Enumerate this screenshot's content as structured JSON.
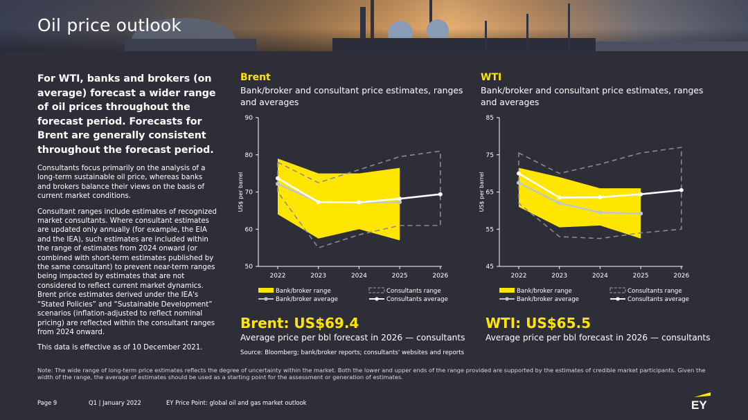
{
  "title": "Oil price outlook",
  "left": {
    "lead": "For WTI, banks and brokers (on average) forecast a wider range of oil prices throughout the forecast period. Forecasts for Brent are generally consistent throughout the forecast period.",
    "p1": "Consultants focus primarily on the analysis of a long-term sustainable oil price, whereas banks and brokers balance their views on the basis of current market conditions.",
    "p2": "Consultant ranges include estimates of recognized market consultants. Where consultant estimates are updated only annually (for example, the EIA and the IEA), such estimates are included within the range of estimates from 2024 onward (or combined with short-term estimates published by the same consultant) to prevent near-term ranges being impacted by estimates that are not considered to reflect current market dynamics. Brent price estimates derived under the IEA's “Stated Policies” and “Sustainable Development” scenarios (inflation-adjusted to reflect nominal pricing) are reflected within the consultant ranges from 2024 onward.",
    "p3": "This data is effective as of 10 December 2021."
  },
  "brent": {
    "title": "Brent",
    "subtitle": "Bank/broker and consultant price estimates, ranges and averages",
    "big": "Brent: US$69.4",
    "bigsub": "Average price per bbl forecast in 2026 — consultants"
  },
  "wti": {
    "title": "WTI",
    "subtitle": "Bank/broker and consultant price estimates, ranges and averages",
    "big": "WTI: US$65.5",
    "bigsub": "Average price per bbl forecast in 2026 — consultants"
  },
  "source": "Source: Bloomberg; bank/broker reports; consultants' websites and reports",
  "note": "Note: The wide range of long-term price estimates reflects the degree of uncertainty within the market. Both the lower and upper ends of the range provided are supported by the estimates of credible market participants. Given the width of the range, the average of estimates should be used as a starting point for the assessment or generation of estimates.",
  "footer": {
    "page": "Page 9",
    "quarter": "Q1 | January 2022",
    "pub": "EY Price Point: global oil and gas market outlook"
  },
  "colors": {
    "background": "#2e2e38",
    "accent": "#ffe600",
    "bank_range": "#ffe600",
    "bank_avg": "#c4c4cd",
    "consult_range": "#8a8a92",
    "consult_avg": "#ffffff"
  },
  "chart_data": [
    {
      "type": "area",
      "ylabel": "US$ per barrel",
      "ylim": [
        50,
        90
      ],
      "yticks": [
        50,
        60,
        70,
        80,
        90
      ],
      "x": [
        "2022",
        "2023",
        "2024",
        "2025",
        "2026"
      ],
      "series": [
        {
          "name": "Bank/broker range",
          "kind": "band",
          "x": [
            "2022",
            "2023",
            "2024",
            "2025"
          ],
          "low": [
            64,
            57.5,
            60,
            57
          ],
          "high": [
            79,
            75,
            75,
            76.5
          ]
        },
        {
          "name": "Consultants range",
          "kind": "band-outline",
          "x": [
            "2022",
            "2023",
            "2024",
            "2025",
            "2026"
          ],
          "low": [
            70,
            55,
            58.5,
            61,
            61
          ],
          "high": [
            78,
            72.5,
            76,
            79.5,
            81
          ]
        },
        {
          "name": "Bank/broker average",
          "kind": "line",
          "x": [
            "2022",
            "2023",
            "2024",
            "2025"
          ],
          "values": [
            72.2,
            67.3,
            67.1,
            67.3
          ]
        },
        {
          "name": "Consultants average",
          "kind": "line",
          "x": [
            "2022",
            "2023",
            "2024",
            "2025",
            "2026"
          ],
          "values": [
            73.7,
            67.3,
            67.2,
            68.2,
            69.4
          ]
        }
      ],
      "legend": "bottom"
    },
    {
      "type": "area",
      "ylabel": "US$ per barrel",
      "ylim": [
        45,
        85
      ],
      "yticks": [
        45,
        55,
        65,
        75,
        85
      ],
      "x": [
        "2022",
        "2023",
        "2024",
        "2025",
        "2026"
      ],
      "series": [
        {
          "name": "Bank/broker range",
          "kind": "band",
          "x": [
            "2022",
            "2023",
            "2024",
            "2025"
          ],
          "low": [
            61,
            55.5,
            56,
            52.5
          ],
          "high": [
            71.5,
            69,
            66,
            66
          ]
        },
        {
          "name": "Consultants range",
          "kind": "band-outline",
          "x": [
            "2022",
            "2023",
            "2024",
            "2025",
            "2026"
          ],
          "low": [
            62,
            53,
            52.5,
            54,
            55
          ],
          "high": [
            75.5,
            70,
            72.5,
            75.5,
            77
          ]
        },
        {
          "name": "Bank/broker average",
          "kind": "line",
          "x": [
            "2022",
            "2023",
            "2024",
            "2025"
          ],
          "values": [
            67.5,
            62,
            59.5,
            59.2
          ]
        },
        {
          "name": "Consultants average",
          "kind": "line",
          "x": [
            "2022",
            "2023",
            "2024",
            "2025",
            "2026"
          ],
          "values": [
            70,
            63.5,
            63.6,
            64.4,
            65.5
          ]
        }
      ],
      "legend": "bottom"
    }
  ]
}
